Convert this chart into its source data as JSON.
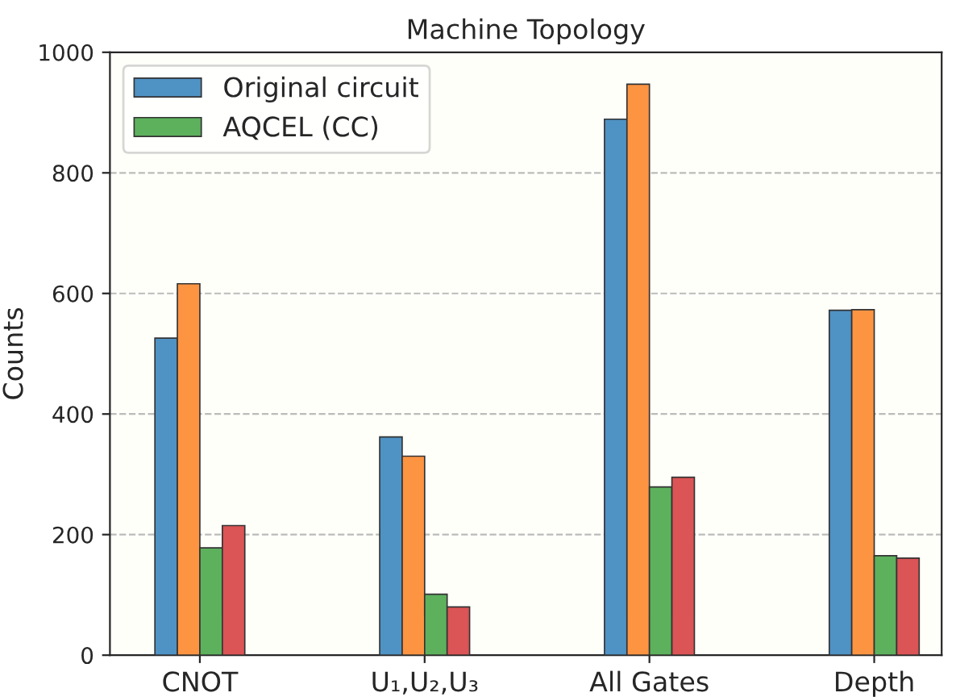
{
  "chart_data": {
    "type": "bar",
    "title": "Machine Topology",
    "ylabel": "Counts",
    "categories": [
      "CNOT",
      "U₁,U₂,U₃",
      "All Gates",
      "Depth"
    ],
    "series": [
      {
        "name": "Original circuit",
        "color": "#4f92c4",
        "values": [
          526,
          362,
          889,
          572
        ]
      },
      {
        "color": "#fd9442",
        "values": [
          616,
          330,
          947,
          573
        ]
      },
      {
        "name": "AQCEL (CC)",
        "color": "#5db15d",
        "values": [
          178,
          101,
          279,
          165
        ]
      },
      {
        "color": "#db5456",
        "values": [
          215,
          80,
          295,
          161
        ]
      }
    ],
    "ylim": [
      0,
      1000
    ],
    "yticks": [
      0,
      200,
      400,
      600,
      800,
      1000
    ],
    "grid": "y",
    "legend": "top left"
  }
}
